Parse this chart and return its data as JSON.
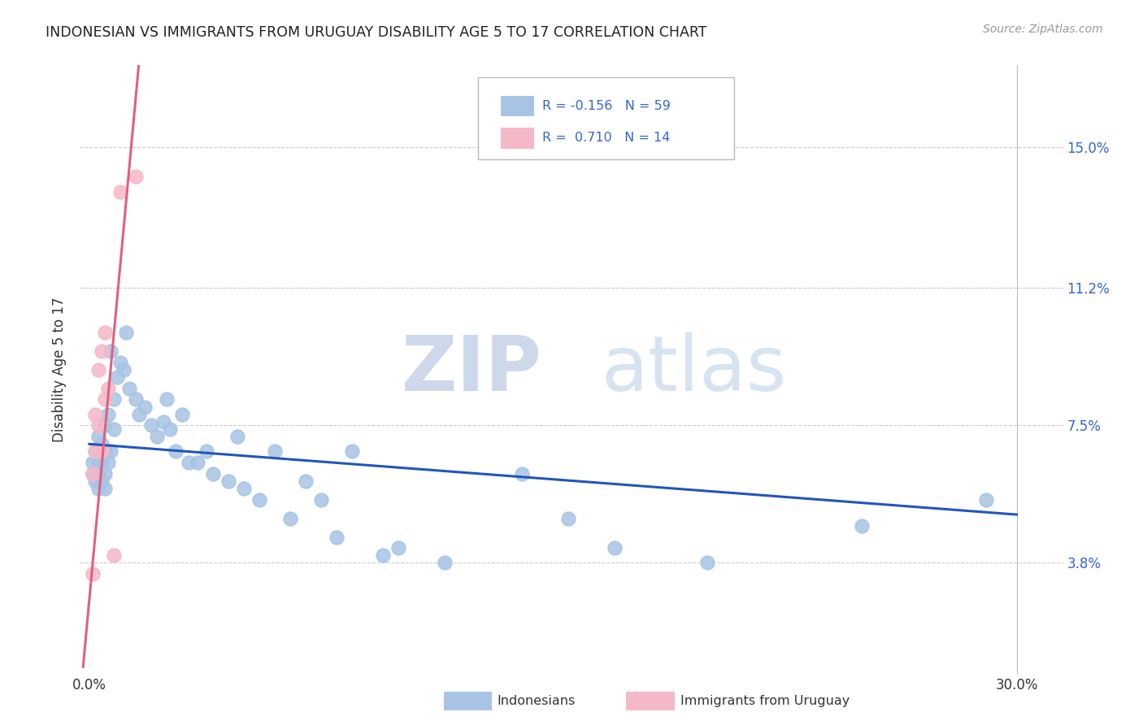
{
  "title": "INDONESIAN VS IMMIGRANTS FROM URUGUAY DISABILITY AGE 5 TO 17 CORRELATION CHART",
  "source": "Source: ZipAtlas.com",
  "ylabel": "Disability Age 5 to 17",
  "y_tick_vals": [
    0.038,
    0.075,
    0.112,
    0.15
  ],
  "y_tick_labels": [
    "3.8%",
    "7.5%",
    "11.2%",
    "15.0%"
  ],
  "xlim": [
    -0.003,
    0.315
  ],
  "ylim": [
    0.008,
    0.172
  ],
  "blue_color": "#a8c4e5",
  "pink_color": "#f5b8c8",
  "blue_line_color": "#2255bb",
  "pink_line_color": "#e06080",
  "blue_line_x": [
    0.0,
    0.3
  ],
  "blue_line_y": [
    0.07,
    0.051
  ],
  "pink_line_x": [
    -0.002,
    0.016
  ],
  "pink_line_y": [
    0.01,
    0.172
  ],
  "indonesians_x": [
    0.001,
    0.001,
    0.002,
    0.002,
    0.003,
    0.003,
    0.003,
    0.003,
    0.004,
    0.004,
    0.004,
    0.005,
    0.005,
    0.005,
    0.005,
    0.006,
    0.006,
    0.007,
    0.007,
    0.008,
    0.008,
    0.009,
    0.01,
    0.011,
    0.012,
    0.013,
    0.015,
    0.016,
    0.018,
    0.02,
    0.022,
    0.024,
    0.025,
    0.026,
    0.028,
    0.03,
    0.032,
    0.035,
    0.038,
    0.04,
    0.045,
    0.048,
    0.05,
    0.055,
    0.06,
    0.065,
    0.07,
    0.075,
    0.08,
    0.085,
    0.095,
    0.1,
    0.115,
    0.14,
    0.155,
    0.17,
    0.2,
    0.25,
    0.29
  ],
  "indonesians_y": [
    0.065,
    0.062,
    0.068,
    0.06,
    0.072,
    0.065,
    0.058,
    0.062,
    0.07,
    0.065,
    0.06,
    0.075,
    0.068,
    0.062,
    0.058,
    0.078,
    0.065,
    0.095,
    0.068,
    0.082,
    0.074,
    0.088,
    0.092,
    0.09,
    0.1,
    0.085,
    0.082,
    0.078,
    0.08,
    0.075,
    0.072,
    0.076,
    0.082,
    0.074,
    0.068,
    0.078,
    0.065,
    0.065,
    0.068,
    0.062,
    0.06,
    0.072,
    0.058,
    0.055,
    0.068,
    0.05,
    0.06,
    0.055,
    0.045,
    0.068,
    0.04,
    0.042,
    0.038,
    0.062,
    0.05,
    0.042,
    0.038,
    0.048,
    0.055
  ],
  "uruguay_x": [
    0.001,
    0.001,
    0.002,
    0.002,
    0.003,
    0.003,
    0.004,
    0.004,
    0.005,
    0.005,
    0.006,
    0.008,
    0.01,
    0.015
  ],
  "uruguay_y": [
    0.062,
    0.035,
    0.068,
    0.078,
    0.09,
    0.075,
    0.095,
    0.068,
    0.1,
    0.082,
    0.085,
    0.04,
    0.138,
    0.142
  ],
  "legend_text_r1": "R = -0.156",
  "legend_text_n1": "N = 59",
  "legend_text_r2": "R =  0.710",
  "legend_text_n2": "N = 14"
}
